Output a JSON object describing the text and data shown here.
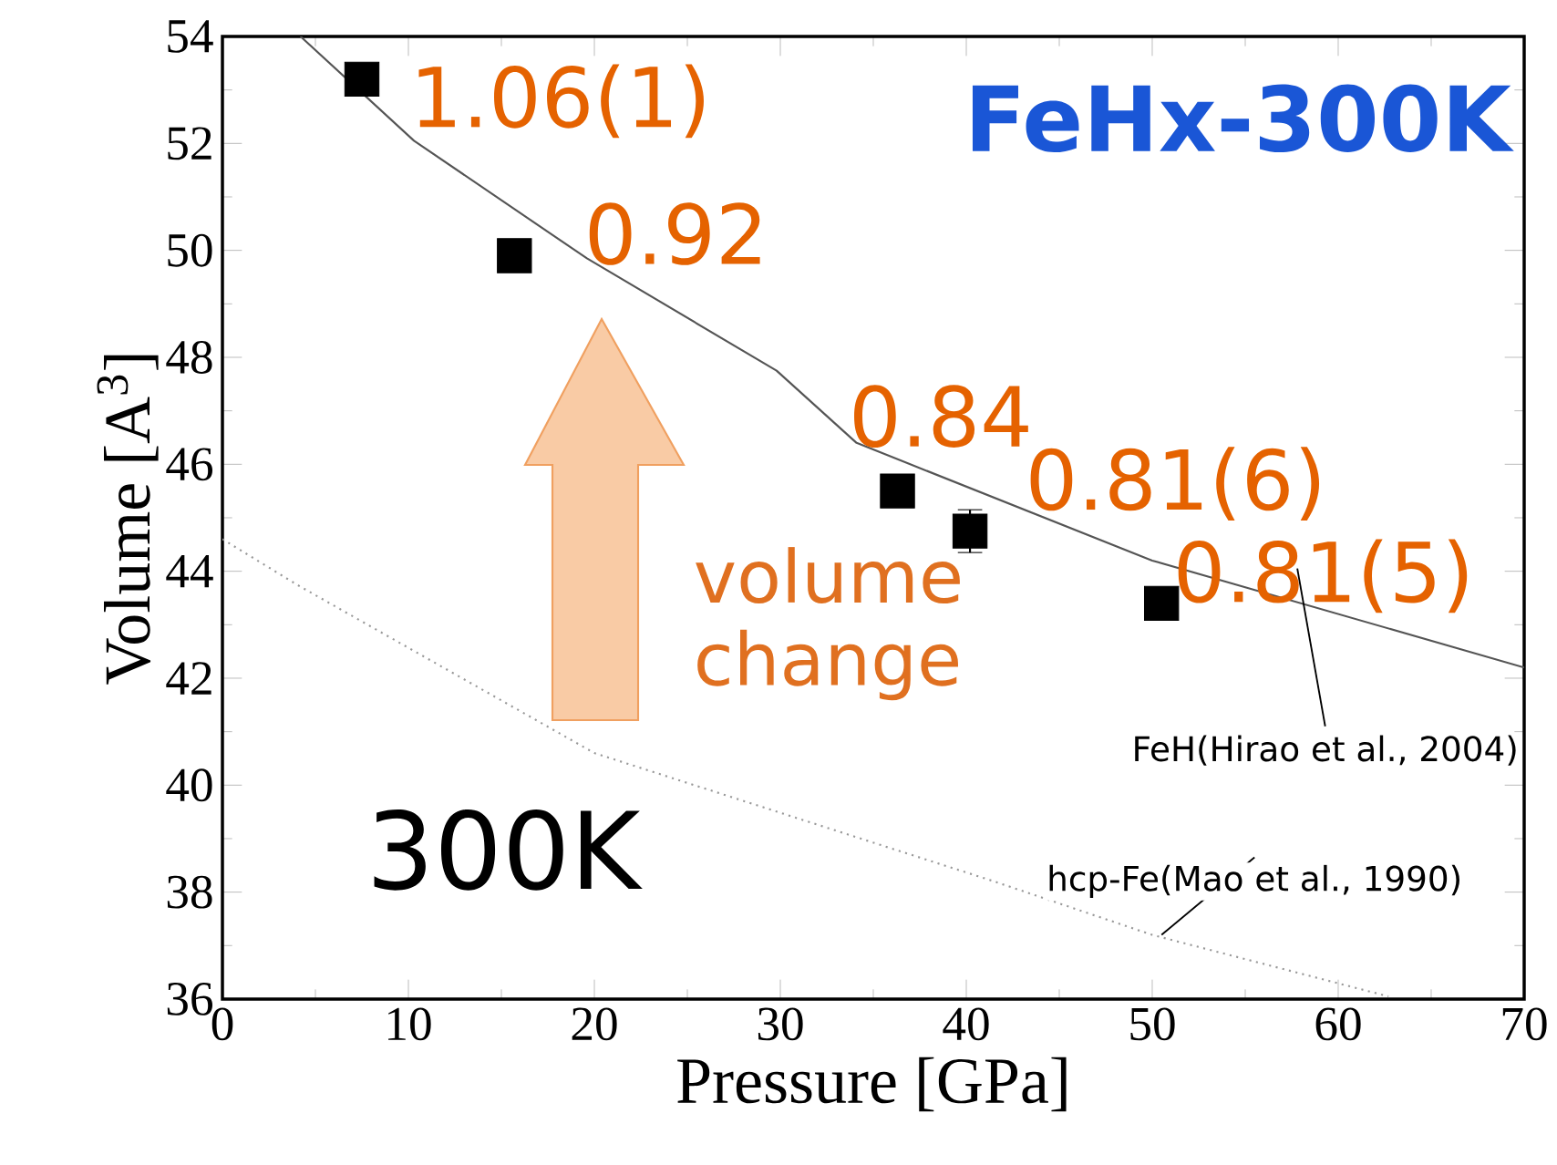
{
  "chart_data": {
    "type": "scatter",
    "xlabel": "Pressure [GPa]",
    "ylabel": "Volume [A$^{3}$]",
    "xlim": [
      0,
      70
    ],
    "ylim": [
      36,
      54
    ],
    "xticks": [
      0,
      10,
      20,
      30,
      40,
      50,
      60,
      70
    ],
    "yticks": [
      36,
      38,
      40,
      42,
      44,
      46,
      48,
      50,
      52,
      54
    ],
    "grid": false,
    "series": [
      {
        "color": "#000000",
        "marker": "square",
        "x": [
          7.5,
          15.7,
          36.3,
          40.2,
          50.5
        ],
        "values": [
          53.2,
          49.9,
          45.5,
          44.75,
          43.4
        ],
        "errors": [
          null,
          null,
          null,
          0.4,
          0.2
        ]
      },
      {
        "type": "line",
        "name": "FeH(Hirao et al., 2004)",
        "color": "#555555",
        "line_style": "solid",
        "marker": "none",
        "x": [
          4.2,
          10.3,
          19.6,
          29.8,
          34.1,
          50,
          70
        ],
        "values": [
          54,
          52.05,
          49.85,
          47.75,
          46.4,
          44.2,
          42.2
        ]
      },
      {
        "type": "line",
        "name": "hcp-Fe(Mao et al., 1990)",
        "color": "#999999",
        "line_style": "dotted",
        "marker": "none",
        "x": [
          0,
          4,
          20,
          41.5,
          50,
          62.7
        ],
        "values": [
          44.6,
          43.75,
          40.6,
          38.2,
          37.2,
          36.05
        ]
      }
    ],
    "annotations": [
      {
        "text": "1.06(1)",
        "x": 7.5,
        "y": 53.2
      },
      {
        "text": "0.92",
        "x": 15.7,
        "y": 49.9
      },
      {
        "text": "0.84",
        "x": 36.3,
        "y": 45.5
      },
      {
        "text": "0.81(6)",
        "x": 40.2,
        "y": 44.75
      },
      {
        "text": "0.81(5)",
        "x": 50.5,
        "y": 43.4
      },
      "FeHx-300K",
      "300K",
      "volume change"
    ]
  }
}
